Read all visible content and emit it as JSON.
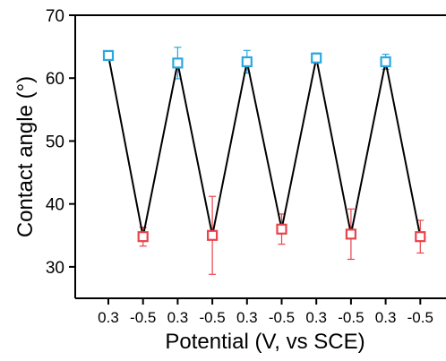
{
  "chart_data": {
    "type": "line",
    "xlabel": "Potential (V, vs SCE)",
    "ylabel": "Contact angle (°)",
    "ylim": [
      25,
      70
    ],
    "yticks": [
      30,
      40,
      50,
      60,
      70
    ],
    "x_tick_labels": [
      "0.3",
      "-0.5",
      "0.3",
      "-0.5",
      "0.3",
      "-0.5",
      "0.3",
      "-0.5",
      "0.3",
      "-0.5"
    ],
    "grid": false,
    "series": [
      {
        "color": "#000000",
        "x": [
          1,
          2,
          3,
          4,
          5,
          6,
          7,
          8,
          9,
          10
        ],
        "values": [
          63.6,
          34.8,
          62.4,
          35.0,
          62.6,
          36.0,
          63.2,
          35.2,
          62.6,
          34.8
        ],
        "errors": [
          0.3,
          1.5,
          2.5,
          6.2,
          1.8,
          2.4,
          0.8,
          4.0,
          1.2,
          2.6
        ],
        "marker_colors": [
          "#29a8e0",
          "#e8434a",
          "#29a8e0",
          "#e8434a",
          "#29a8e0",
          "#e8434a",
          "#29a8e0",
          "#e8434a",
          "#29a8e0",
          "#e8434a"
        ]
      }
    ]
  }
}
